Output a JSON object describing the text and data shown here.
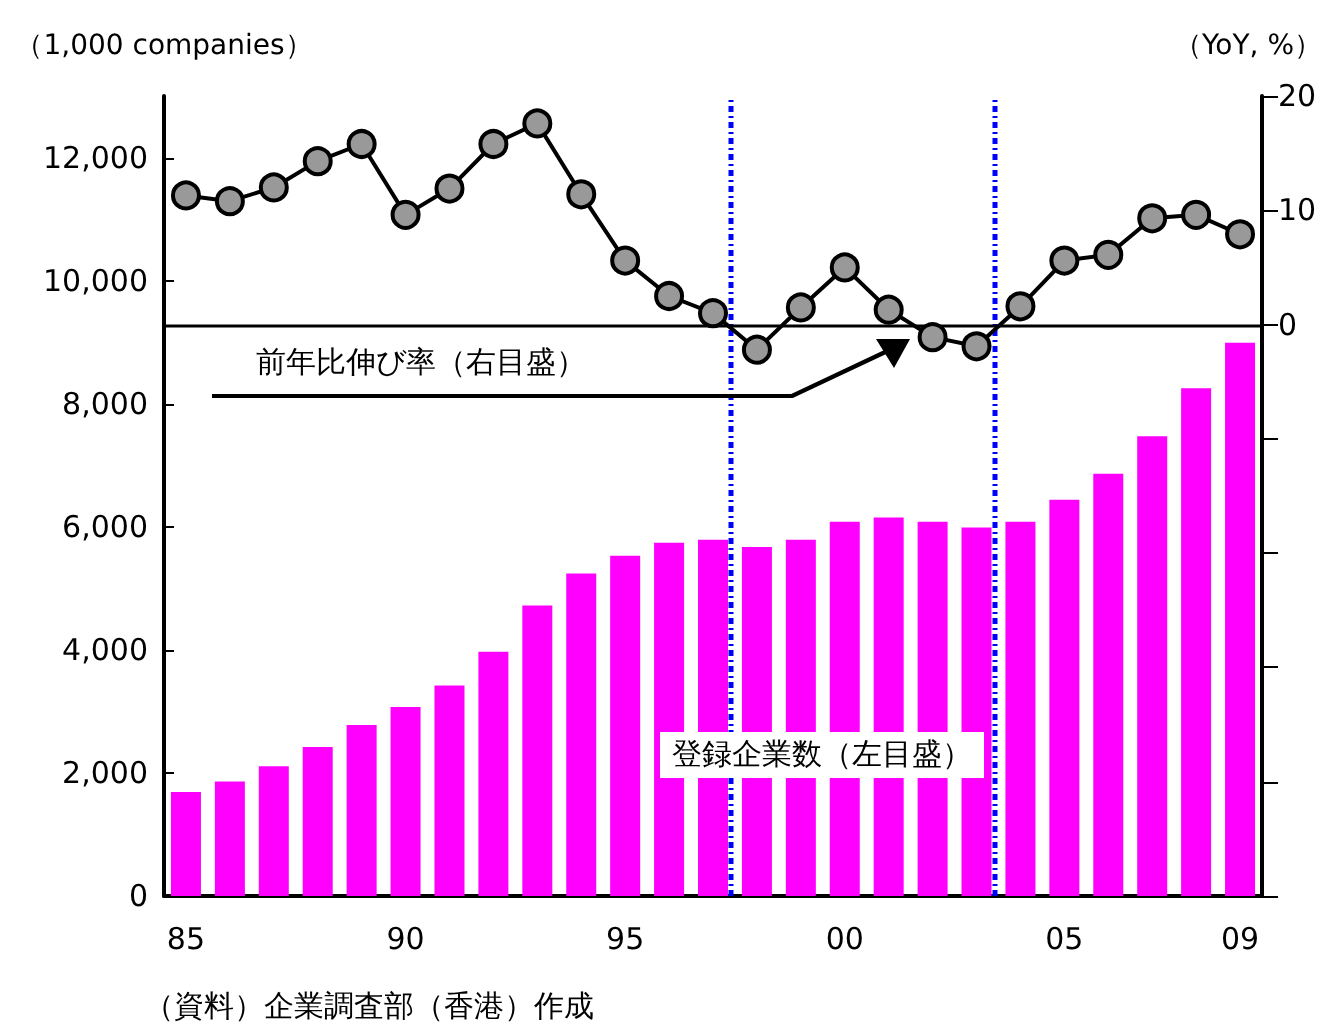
{
  "chart_data": {
    "type": "bar",
    "x": [
      1985,
      1986,
      1987,
      1988,
      1989,
      1990,
      1991,
      1992,
      1993,
      1994,
      1995,
      1996,
      1997,
      1998,
      1999,
      2000,
      2001,
      2002,
      2003,
      2004,
      2005,
      2006,
      2007,
      2008,
      2009
    ],
    "xlim": [
      1984.5,
      2009.5
    ],
    "xticks": [
      {
        "value": 1985,
        "label": "85"
      },
      {
        "value": 1990,
        "label": "90"
      },
      {
        "value": 1995,
        "label": "95"
      },
      {
        "value": 2000,
        "label": "00"
      },
      {
        "value": 2005,
        "label": "05"
      },
      {
        "value": 2009,
        "label": "09"
      }
    ],
    "ylabel": "（1,000 companies）",
    "y2label": "（YoY, %）",
    "ylim": [
      0,
      13000
    ],
    "yticks": [
      0,
      {
        "value": 2000,
        "label": "2,000"
      },
      {
        "value": 4000,
        "label": "4,000"
      },
      {
        "value": 6000,
        "label": "6,000"
      },
      {
        "value": 8000,
        "label": "8,000"
      },
      {
        "value": 10000,
        "label": "10,000"
      },
      {
        "value": 12000,
        "label": "12,000"
      }
    ],
    "y2lim": [
      -50,
      20
    ],
    "y2ticks": [
      {
        "value": -50,
        "label": null
      },
      {
        "value": -40,
        "label": null
      },
      {
        "value": -30,
        "label": null
      },
      {
        "value": -20,
        "label": null
      },
      {
        "value": -10,
        "label": null
      },
      0,
      10,
      20
    ],
    "series": [
      {
        "color": "#ff00ff",
        "values": [
          1690,
          1860,
          2110,
          2420,
          2780,
          3070,
          3420,
          3970,
          4720,
          5240,
          5530,
          5740,
          5790,
          5670,
          5790,
          6080,
          6150,
          6080,
          5990,
          6080,
          6440,
          6860,
          7470,
          8250,
          8990
        ]
      },
      {
        "type": "line",
        "axis": "y2",
        "color": "#000000",
        "marker": "circle",
        "values": [
          11.3,
          10.8,
          12.0,
          14.3,
          15.8,
          9.6,
          11.9,
          15.8,
          17.6,
          11.4,
          5.6,
          2.5,
          1.0,
          -2.2,
          1.5,
          5.0,
          1.3,
          -1.1,
          -1.9,
          1.6,
          5.6,
          6.1,
          9.3,
          9.6,
          7.9
        ]
      }
    ],
    "ref_lines": [
      {
        "axis": "y2",
        "value": 0,
        "color": "#000000",
        "line_style": "solid"
      },
      {
        "axis": "x",
        "value": 1997.4,
        "color": "#0000ff",
        "line_style": "dotted"
      },
      {
        "axis": "x",
        "value": 2003.4,
        "color": "#0000ff",
        "line_style": "dotted"
      }
    ],
    "annotations": [
      "前年比伸び率（右目盛）",
      "登録企業数（左目盛）",
      "（資料）企業調査部（香港）作成"
    ],
    "grid": false
  }
}
